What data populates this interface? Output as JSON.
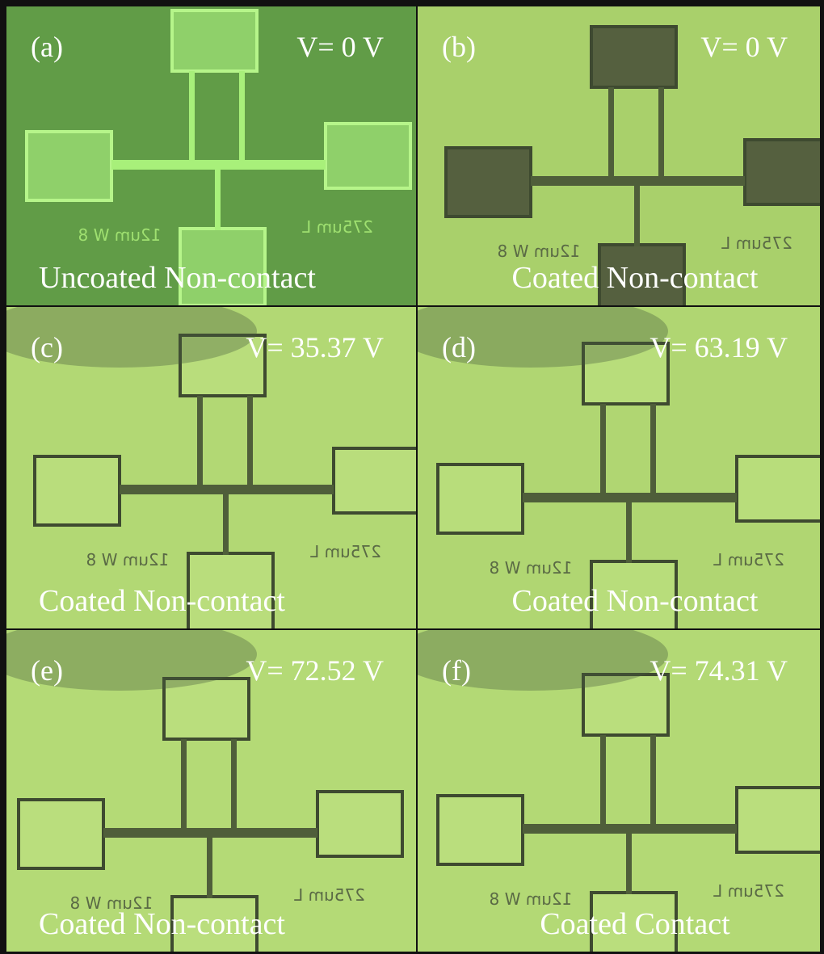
{
  "panels": [
    {
      "label": "(a)",
      "voltage": "V= 0 V",
      "caption": "Uncoated Non-contact",
      "width_label": "12um W 8",
      "length_label": "275um L"
    },
    {
      "label": "(b)",
      "voltage": "V= 0 V",
      "caption": "Coated Non-contact",
      "width_label": "12um W 8",
      "length_label": "275um L"
    },
    {
      "label": "(c)",
      "voltage": "V= 35.37 V",
      "caption": "Coated Non-contact",
      "width_label": "12um W 8",
      "length_label": "275um L"
    },
    {
      "label": "(d)",
      "voltage": "V= 63.19 V",
      "caption": "Coated Non-contact",
      "width_label": "12um W 8",
      "length_label": "275um L"
    },
    {
      "label": "(e)",
      "voltage": "V= 72.52 V",
      "caption": "Coated Non-contact",
      "width_label": "12um W 8",
      "length_label": "275um L"
    },
    {
      "label": "(f)",
      "voltage": "V= 74.31 V",
      "caption": "Coated Contact",
      "width_label": "12um W 8",
      "length_label": "275um L"
    }
  ]
}
